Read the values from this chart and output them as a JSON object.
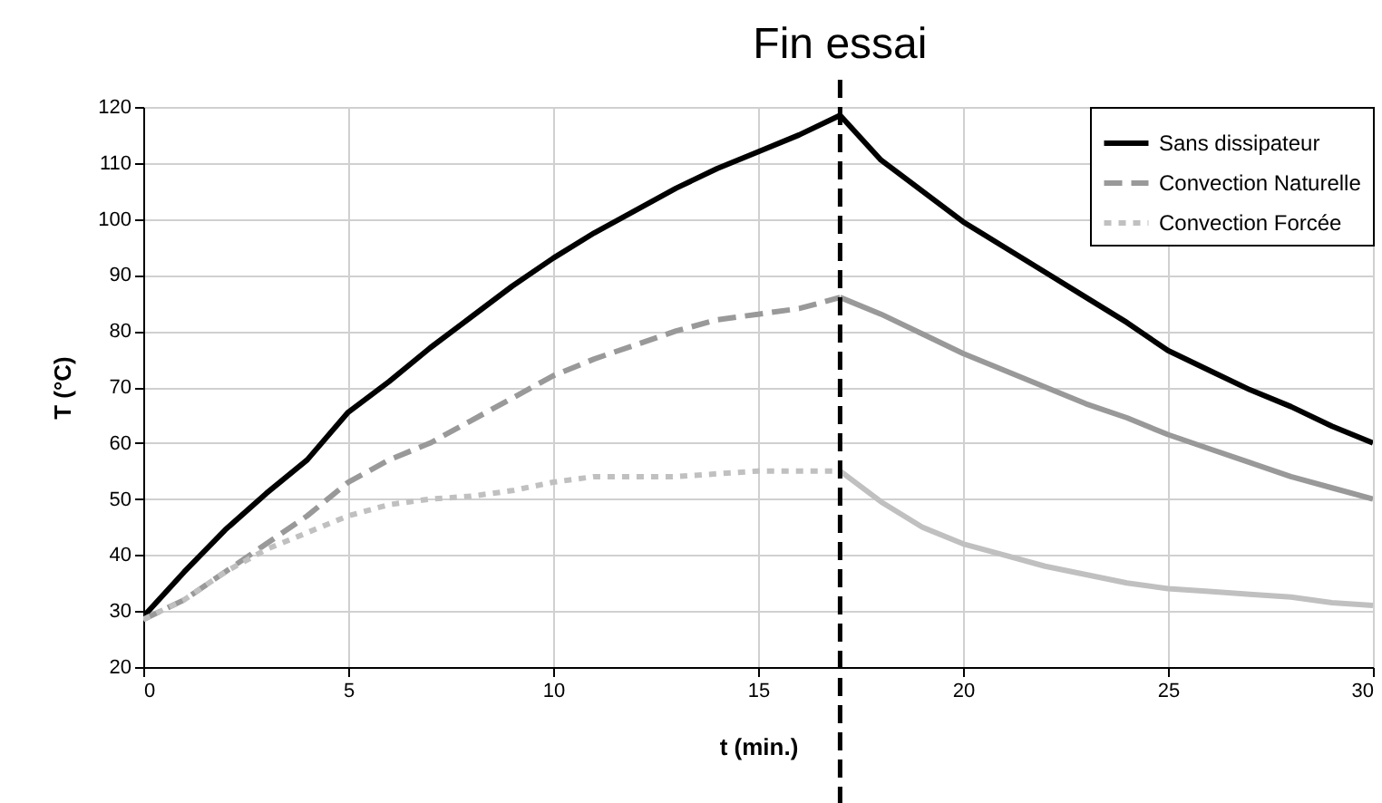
{
  "chart_data": {
    "type": "line",
    "xlabel": "t (min.)",
    "ylabel": "T (°C)",
    "xlim": [
      0,
      30
    ],
    "xticks": [
      0,
      5,
      10,
      15,
      20,
      25,
      30
    ],
    "ylim": [
      20,
      120
    ],
    "yticks": [
      20,
      30,
      40,
      50,
      60,
      70,
      80,
      90,
      100,
      110,
      120
    ],
    "grid": true,
    "legend": "top right",
    "marker": "none",
    "ref_lines": [
      {
        "axis": "x",
        "value": 17,
        "label": "Fin essai",
        "color": "#000000",
        "line_style": "dashed"
      }
    ],
    "series": [
      {
        "name": "Sans dissipateur",
        "color": "#000000",
        "line_style": "solid",
        "x": [
          0,
          1,
          2,
          3,
          4,
          5,
          6,
          7,
          8,
          9,
          10,
          11,
          12,
          13,
          14,
          15,
          16,
          17,
          18,
          19,
          20,
          21,
          22,
          23,
          24,
          25,
          26,
          27,
          28,
          29,
          30
        ],
        "values": [
          29,
          37,
          44.5,
          51,
          57,
          65.5,
          71,
          77,
          82.5,
          88,
          93,
          97.5,
          101.5,
          105.5,
          109,
          112,
          115,
          118.5,
          110.5,
          105,
          99.5,
          95,
          90.5,
          86,
          81.5,
          76.5,
          73,
          69.5,
          66.5,
          63,
          60
        ]
      },
      {
        "name": "Convection Naturelle",
        "color": "#999999",
        "line_style": "dashed",
        "x": [
          0,
          1,
          2,
          3,
          4,
          5,
          6,
          7,
          8,
          9,
          10,
          11,
          12,
          13,
          14,
          15,
          16,
          17
        ],
        "values": [
          28.5,
          32,
          37,
          42,
          47,
          53,
          57,
          60,
          64,
          68,
          72,
          75,
          77.5,
          80,
          82,
          83,
          84,
          86
        ]
      },
      {
        "color": "#999999",
        "line_style": "solid",
        "x": [
          17,
          18,
          19,
          20,
          21,
          22,
          23,
          24,
          25,
          26,
          27,
          28,
          29,
          30
        ],
        "values": [
          86,
          83,
          79.5,
          76,
          73,
          70,
          67,
          64.5,
          61.5,
          59,
          56.5,
          54,
          52,
          50
        ]
      },
      {
        "name": "Convection Forcée",
        "color": "#c0c0c0",
        "line_style": "dotted",
        "x": [
          0,
          1,
          2,
          3,
          4,
          5,
          6,
          7,
          8,
          9,
          10,
          11,
          12,
          13,
          14,
          15,
          16,
          17
        ],
        "values": [
          28.5,
          32,
          37,
          41,
          44,
          47,
          49,
          50,
          50.5,
          51.5,
          53,
          54,
          54,
          54,
          54.5,
          55,
          55,
          55
        ]
      },
      {
        "color": "#c0c0c0",
        "line_style": "solid",
        "x": [
          17,
          18,
          19,
          20,
          21,
          22,
          23,
          24,
          25,
          26,
          27,
          28,
          29,
          30
        ],
        "values": [
          55,
          49.5,
          45,
          42,
          40,
          38,
          36.5,
          35,
          34,
          33.5,
          33,
          32.5,
          31.5,
          31
        ]
      }
    ]
  }
}
